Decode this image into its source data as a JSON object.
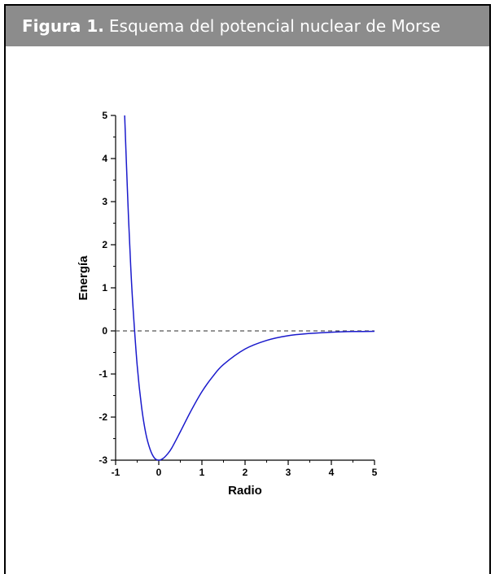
{
  "figure": {
    "label": "Figura 1.",
    "caption": "Esquema del potencial nuclear de Morse"
  },
  "chart_data": {
    "type": "line",
    "title": "",
    "xlabel": "Radio",
    "ylabel": "Energía",
    "xlim": [
      -1,
      5
    ],
    "ylim": [
      -3,
      5
    ],
    "xticks": [
      "-1",
      "0",
      "1",
      "2",
      "3",
      "4",
      "5"
    ],
    "yticks": [
      "-3",
      "-2",
      "-1",
      "0",
      "1",
      "2",
      "3",
      "4",
      "5"
    ],
    "series": [
      {
        "color": "#1a1acc",
        "x": [
          -0.79,
          -0.75,
          -0.7,
          -0.65,
          -0.6,
          -0.5,
          -0.4,
          -0.3,
          -0.2,
          -0.1,
          0.0,
          0.1,
          0.2,
          0.3,
          0.5,
          0.75,
          1.0,
          1.25,
          1.5,
          2.0,
          2.5,
          3.0,
          3.5,
          4.0,
          4.5,
          5.0
        ],
        "y": [
          5.0,
          3.9,
          2.6,
          1.5,
          0.6,
          -0.8,
          -1.75,
          -2.38,
          -2.75,
          -2.95,
          -3.0,
          -2.96,
          -2.86,
          -2.72,
          -2.34,
          -1.85,
          -1.41,
          -1.06,
          -0.78,
          -0.42,
          -0.22,
          -0.11,
          -0.06,
          -0.03,
          -0.015,
          -0.01
        ]
      }
    ],
    "reference_line": {
      "y": 0,
      "style": "dashed",
      "color": "#555555"
    }
  }
}
